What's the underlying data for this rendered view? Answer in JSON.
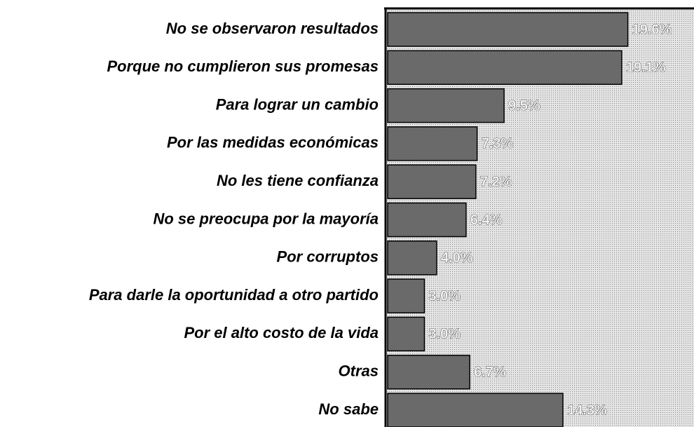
{
  "chart_data": {
    "type": "hbar",
    "categories": [
      "No se observaron resultados",
      "Porque no cumplieron sus promesas",
      "Para lograr un cambio",
      "Por las medidas económicas",
      "No les tiene confianza",
      "No se preocupa por la mayoría",
      "Por corruptos",
      "Para darle la oportunidad a otro partido",
      "Por el alto costo de la vida",
      "Otras",
      "No sabe"
    ],
    "values": [
      19.6,
      19.1,
      9.5,
      7.3,
      7.2,
      6.4,
      4.0,
      3.0,
      3.0,
      6.7,
      14.3
    ],
    "value_labels": [
      "19.6%",
      "19.1%",
      "9.5%",
      "7.3%",
      "7.2%",
      "6.4%",
      "4.0%",
      "3.0%",
      "3.0%",
      "6.7%",
      "14.3%"
    ],
    "color": "#6e6e6e",
    "xlim": [
      0,
      25
    ]
  }
}
